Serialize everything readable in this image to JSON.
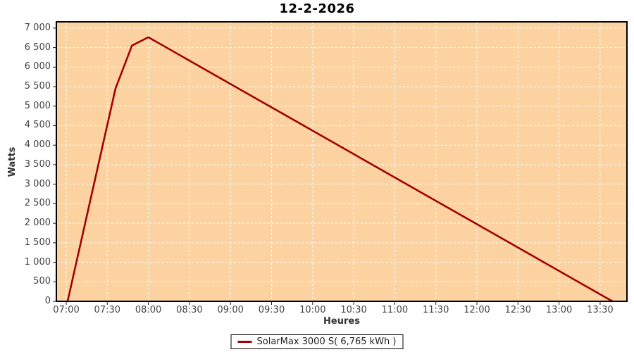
{
  "title": "12-2-2026",
  "legend": {
    "series_label": "SolarMax 3000 S( 6,765 kWh )"
  },
  "chart_data": {
    "type": "line",
    "title": "12-2-2026",
    "xlabel": "Heures",
    "ylabel": "Watts",
    "x_tick_labels": [
      "07:00",
      "07:30",
      "08:00",
      "08:30",
      "09:00",
      "09:30",
      "10:00",
      "10:30",
      "11:00",
      "11:30",
      "12:00",
      "12:30",
      "13:00",
      "13:30"
    ],
    "y_tick_labels": [
      "0",
      "500",
      "1 000",
      "1 500",
      "2 000",
      "2 500",
      "3 000",
      "3 500",
      "4 000",
      "4 500",
      "5 000",
      "5 500",
      "6 000",
      "6 500",
      "7 000"
    ],
    "ylim": [
      0,
      7160
    ],
    "xlim_minutes": [
      412.8,
      829.6
    ],
    "grid": true,
    "legend_position": "bottom-center",
    "series": [
      {
        "name": "SolarMax 3000 S( 6,765 kWh )",
        "color": "#a40000",
        "points": [
          {
            "time": "07:01",
            "watts": 0
          },
          {
            "time": "07:36",
            "watts": 5450
          },
          {
            "time": "07:48",
            "watts": 6550
          },
          {
            "time": "08:00",
            "watts": 6765
          },
          {
            "time": "13:39",
            "watts": 0
          }
        ]
      }
    ],
    "colors": {
      "plot_background": "#fcd3a0",
      "gridline": "#ffffff",
      "axis_frame": "#000000",
      "tick_color": "#222222",
      "tick_label": "#444444",
      "axis_title": "#333333",
      "series_line": "#a40000"
    }
  }
}
